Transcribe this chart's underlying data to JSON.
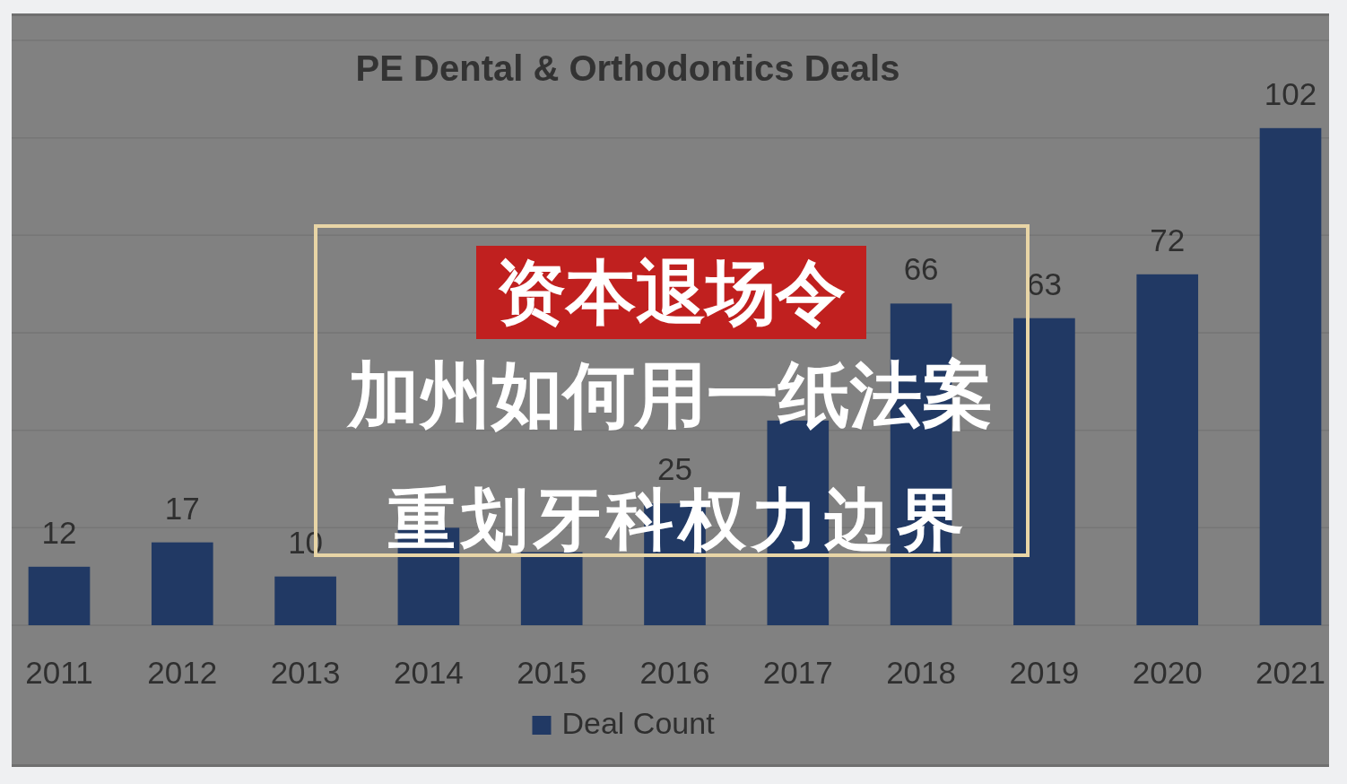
{
  "chart_data": {
    "type": "bar",
    "title": "PE Dental & Orthodontics Deals",
    "categories": [
      "2011",
      "2012",
      "2013",
      "2014",
      "2015",
      "2016",
      "2017",
      "2018",
      "2019",
      "2020",
      "2021"
    ],
    "series": [
      {
        "name": "Deal Count",
        "color": "#213964",
        "values": [
          12,
          17,
          10,
          20,
          15,
          25,
          42,
          66,
          63,
          72,
          102
        ],
        "value_labels": [
          "12",
          "17",
          "10",
          null,
          null,
          "25",
          null,
          "66",
          "63",
          "72",
          "102"
        ]
      }
    ],
    "ylim": [
      0,
      120
    ],
    "yticks": [
      {
        "value": 0,
        "label": null
      },
      {
        "value": 20,
        "label": null
      },
      {
        "value": 40,
        "label": null
      },
      {
        "value": 60,
        "label": null
      },
      {
        "value": 80,
        "label": null
      },
      {
        "value": 100,
        "label": null
      },
      {
        "value": 120,
        "label": null
      }
    ],
    "tick_labels": "x",
    "grid": "y",
    "legend": "bottom",
    "annotations": [
      "资本退场令",
      "加州如何用一纸法案",
      "重划牙科权力边界"
    ]
  }
}
